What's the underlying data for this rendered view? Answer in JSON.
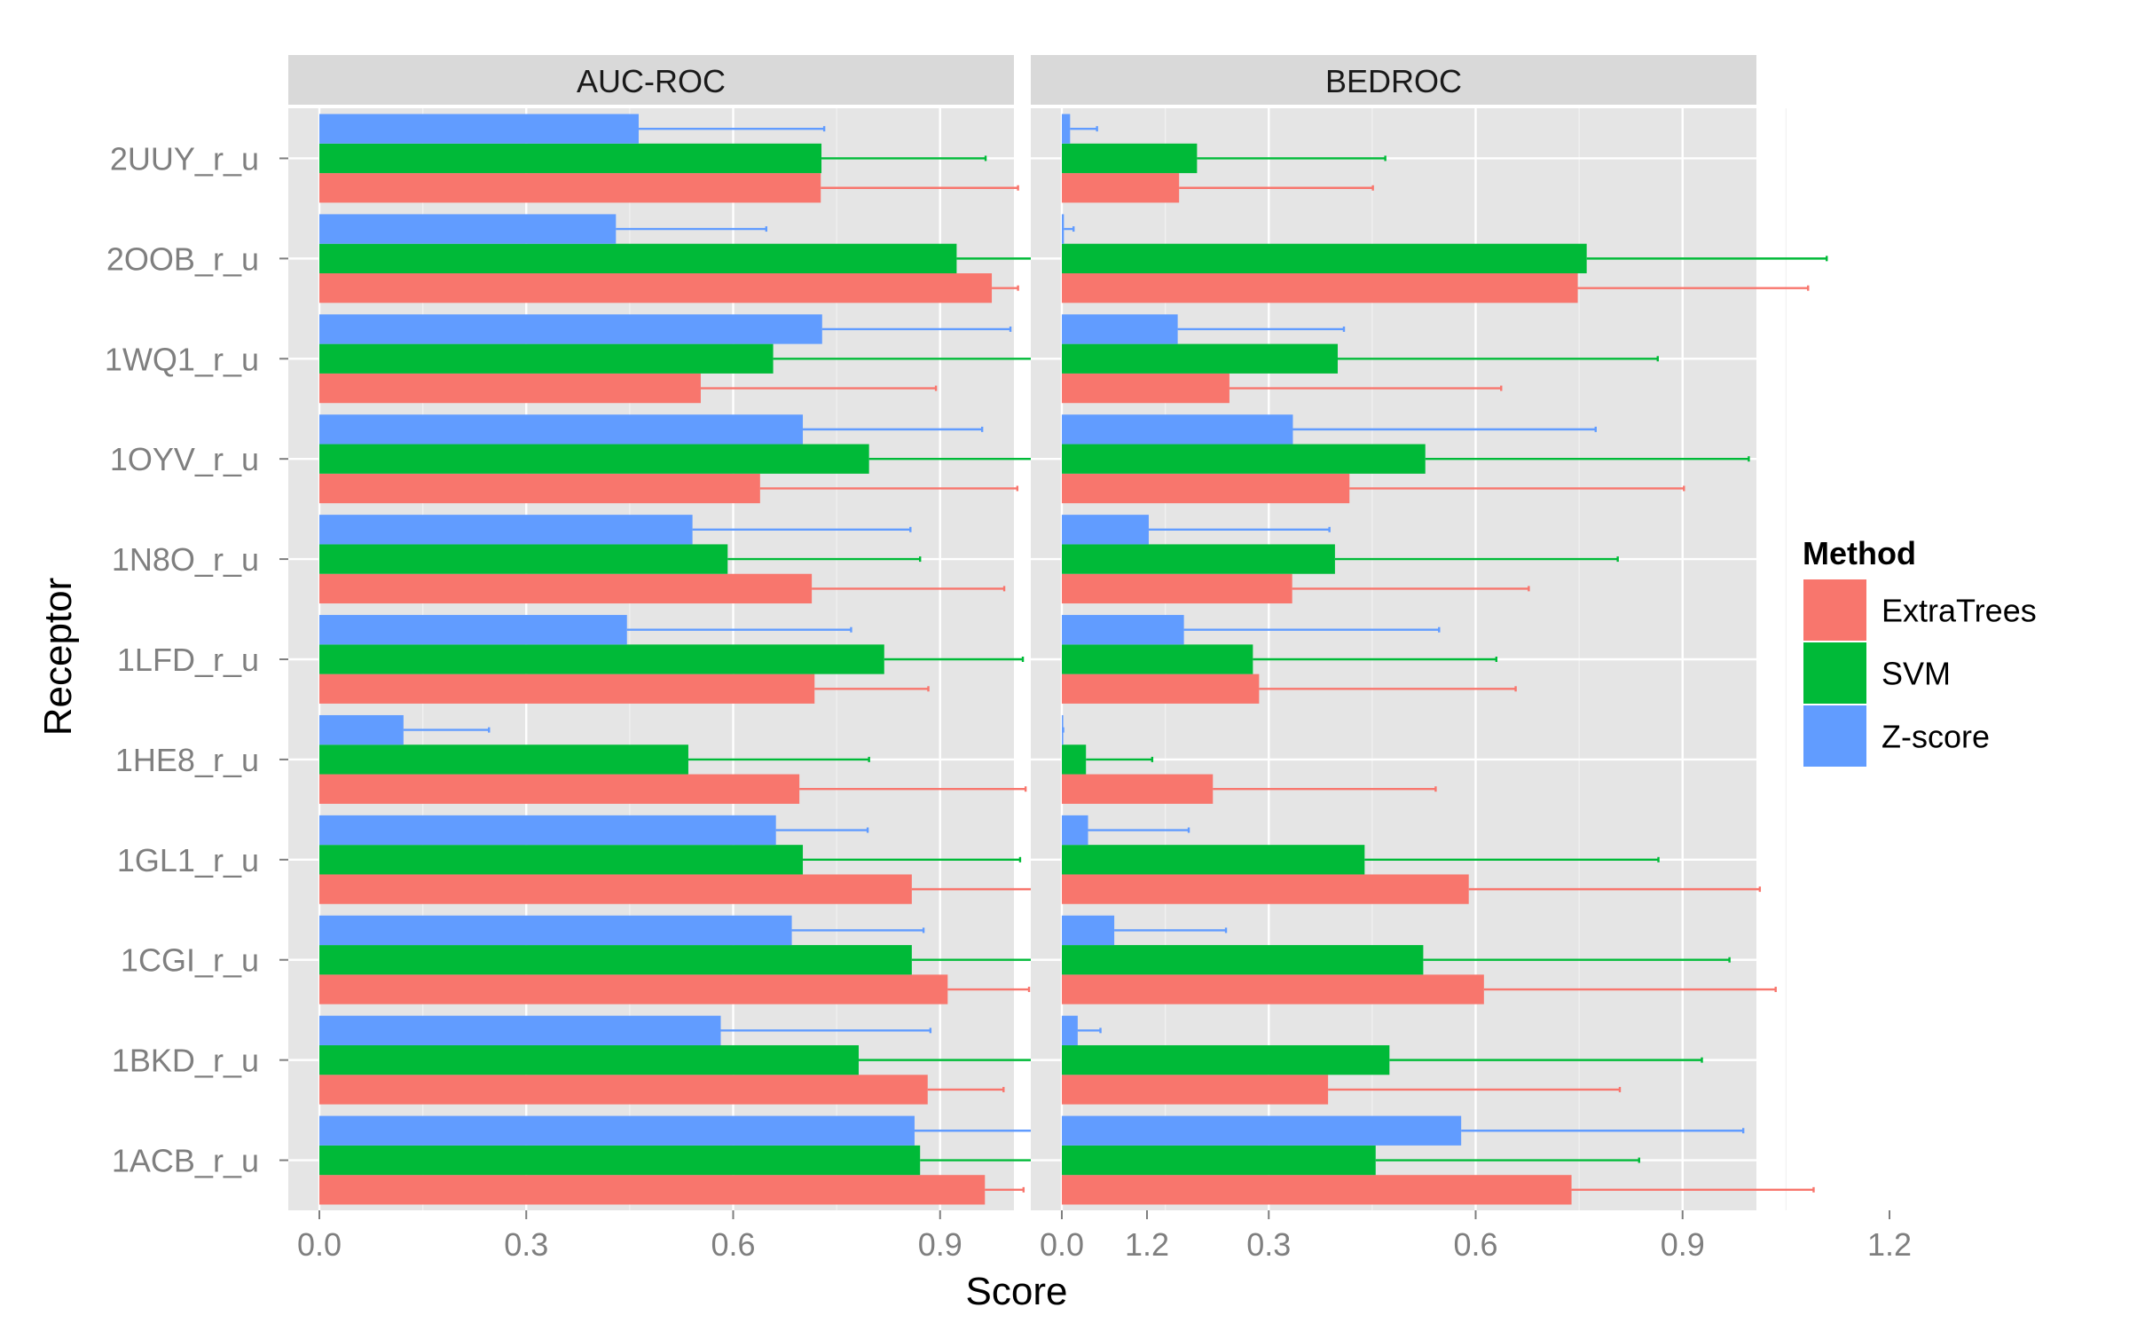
{
  "chart_data": {
    "type": "bar",
    "orientation": "horizontal",
    "xlabel": "Score",
    "ylabel": "Receptor",
    "xlim": [
      0,
      1.2
    ],
    "x_ticks": [
      "0.0",
      "0.3",
      "0.6",
      "0.9",
      "1.2"
    ],
    "grid": true,
    "legend_title": "Method",
    "legend_position": "right",
    "categories": [
      "2UUY_r_u",
      "2OOB_r_u",
      "1WQ1_r_u",
      "1OYV_r_u",
      "1N8O_r_u",
      "1LFD_r_u",
      "1HE8_r_u",
      "1GL1_r_u",
      "1CGI_r_u",
      "1BKD_r_u",
      "1ACB_r_u"
    ],
    "series_styles": [
      {
        "name": "ExtraTrees",
        "color": "#F8766D"
      },
      {
        "name": "SVM",
        "color": "#00BA38"
      },
      {
        "name": "Z-score",
        "color": "#619CFF"
      }
    ],
    "panels": [
      {
        "title": "AUC-ROC",
        "series": [
          {
            "name": "ExtraTrees",
            "values": [
              0.727,
              0.975,
              0.553,
              0.639,
              0.714,
              0.718,
              0.696,
              0.859,
              0.911,
              0.882,
              0.965
            ],
            "error_upper": [
              1.013,
              1.013,
              0.894,
              1.012,
              0.993,
              0.883,
              1.024,
              1.057,
              1.029,
              0.992,
              1.021
            ]
          },
          {
            "name": "SVM",
            "values": [
              0.728,
              0.924,
              0.658,
              0.797,
              0.592,
              0.819,
              0.535,
              0.701,
              0.859,
              0.782,
              0.871
            ],
            "error_upper": [
              0.966,
              1.146,
              1.035,
              1.109,
              0.871,
              1.02,
              0.797,
              1.016,
              1.052,
              1.084,
              1.075
            ]
          },
          {
            "name": "Z-score",
            "values": [
              0.463,
              0.43,
              0.729,
              0.701,
              0.541,
              0.446,
              0.122,
              0.662,
              0.685,
              0.582,
              0.863
            ],
            "error_upper": [
              0.732,
              0.648,
              1.002,
              0.961,
              0.857,
              0.771,
              0.246,
              0.795,
              0.876,
              0.886,
              1.045
            ]
          }
        ]
      },
      {
        "title": "BEDROC",
        "series": [
          {
            "name": "ExtraTrees",
            "values": [
              0.17,
              0.748,
              0.243,
              0.417,
              0.334,
              0.286,
              0.219,
              0.59,
              0.612,
              0.386,
              0.739
            ],
            "error_upper": [
              0.451,
              1.082,
              0.637,
              0.902,
              0.677,
              0.658,
              0.542,
              1.012,
              1.035,
              0.809,
              1.09
            ]
          },
          {
            "name": "SVM",
            "values": [
              0.196,
              0.761,
              0.4,
              0.527,
              0.396,
              0.277,
              0.035,
              0.439,
              0.524,
              0.475,
              0.455
            ],
            "error_upper": [
              0.469,
              1.109,
              0.864,
              0.996,
              0.806,
              0.63,
              0.131,
              0.865,
              0.968,
              0.928,
              0.837
            ]
          },
          {
            "name": "Z-score",
            "values": [
              0.012,
              0.003,
              0.168,
              0.335,
              0.126,
              0.177,
              0.002,
              0.038,
              0.076,
              0.023,
              0.579
            ],
            "error_upper": [
              0.051,
              0.017,
              0.409,
              0.774,
              0.388,
              0.547,
              0.002,
              0.184,
              0.238,
              0.056,
              0.988
            ]
          }
        ]
      }
    ]
  }
}
